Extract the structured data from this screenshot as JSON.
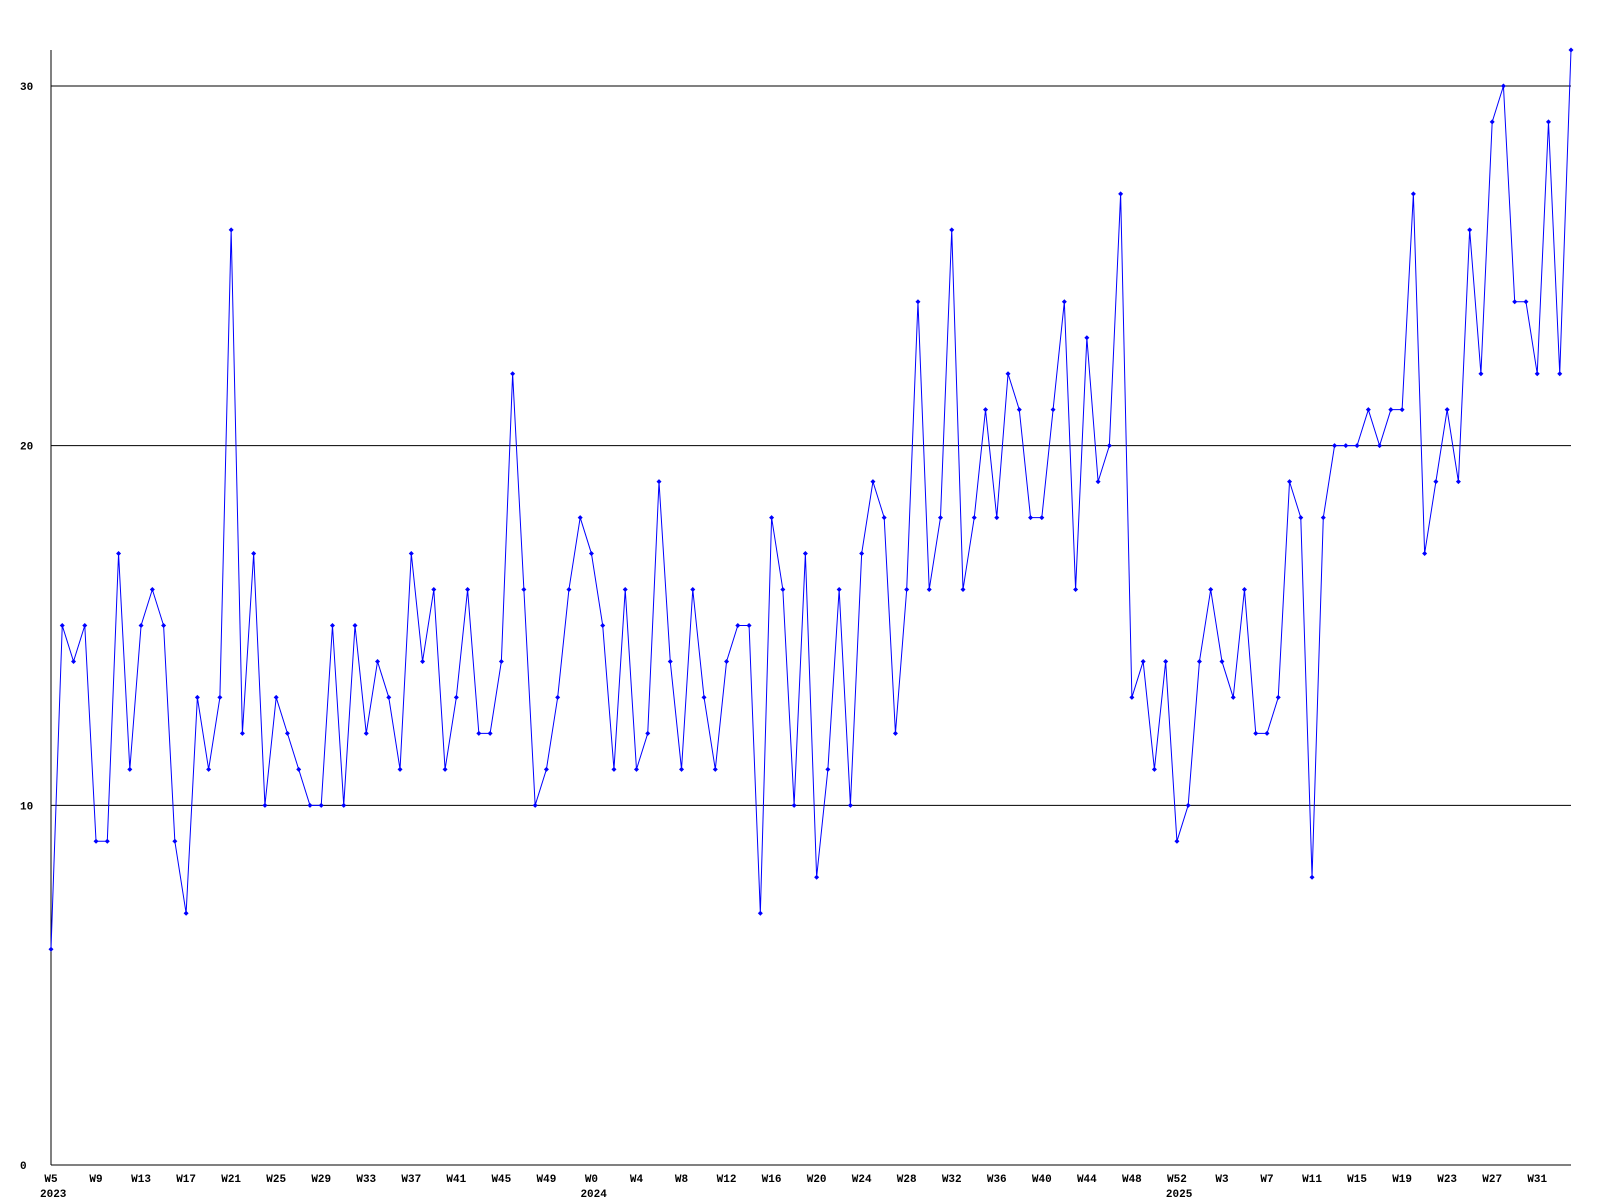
{
  "chart_data": {
    "type": "line",
    "color": "#0000ff",
    "grid": true,
    "ylim": [
      0,
      31
    ],
    "yticks": [
      0,
      10,
      20,
      30
    ],
    "categories": [
      "W5",
      null,
      null,
      null,
      "W9",
      null,
      null,
      null,
      "W13",
      null,
      null,
      null,
      "W17",
      null,
      null,
      null,
      "W21",
      null,
      null,
      null,
      "W25",
      null,
      null,
      null,
      "W29",
      null,
      null,
      null,
      "W33",
      null,
      null,
      null,
      "W37",
      null,
      null,
      null,
      "W41",
      null,
      null,
      null,
      "W45",
      null,
      null,
      null,
      "W49",
      null,
      null,
      null,
      "W0",
      null,
      null,
      null,
      "W4",
      null,
      null,
      null,
      "W8",
      null,
      null,
      null,
      "W12",
      null,
      null,
      null,
      "W16",
      null,
      null,
      null,
      "W20",
      null,
      null,
      null,
      "W24",
      null,
      null,
      null,
      "W28",
      null,
      null,
      null,
      "W32",
      null,
      null,
      null,
      "W36",
      null,
      null,
      null,
      "W40",
      null,
      null,
      null,
      "W44",
      null,
      null,
      null,
      "W48",
      null,
      null,
      null,
      "W52",
      null,
      null,
      null,
      "W3",
      null,
      null,
      null,
      "W7",
      null,
      null,
      null,
      "W11",
      null,
      null,
      null,
      "W15",
      null,
      null,
      null,
      "W19",
      null,
      null,
      null,
      "W23",
      null,
      null,
      null,
      "W27",
      null,
      null,
      null,
      "W31",
      null,
      null,
      null
    ],
    "category_years": [
      "2023",
      null,
      null,
      null,
      null,
      null,
      null,
      null,
      null,
      null,
      null,
      null,
      null,
      null,
      null,
      null,
      null,
      null,
      null,
      null,
      null,
      null,
      null,
      null,
      null,
      null,
      null,
      null,
      null,
      null,
      null,
      null,
      null,
      null,
      null,
      null,
      null,
      null,
      null,
      null,
      null,
      null,
      null,
      null,
      null,
      null,
      null,
      null,
      "2024",
      null,
      null,
      null,
      null,
      null,
      null,
      null,
      null,
      null,
      null,
      null,
      null,
      null,
      null,
      null,
      null,
      null,
      null,
      null,
      null,
      null,
      null,
      null,
      null,
      null,
      null,
      null,
      null,
      null,
      null,
      null,
      null,
      null,
      null,
      null,
      null,
      null,
      null,
      null,
      null,
      null,
      null,
      null,
      null,
      null,
      null,
      null,
      null,
      null,
      null,
      null,
      "2025",
      null,
      null,
      null,
      null,
      null,
      null,
      null,
      null,
      null,
      null,
      null,
      null,
      null,
      null,
      null,
      null,
      null,
      null,
      null,
      null,
      null,
      null,
      null,
      null,
      null,
      null,
      null,
      null,
      null,
      null,
      null,
      null,
      null,
      null,
      null
    ],
    "values": [
      6,
      15,
      14,
      15,
      9,
      9,
      17,
      11,
      15,
      16,
      15,
      9,
      7,
      13,
      11,
      13,
      26,
      12,
      17,
      10,
      13,
      12,
      11,
      10,
      10,
      15,
      10,
      15,
      12,
      14,
      13,
      11,
      17,
      14,
      16,
      11,
      13,
      16,
      12,
      12,
      14,
      22,
      16,
      10,
      11,
      13,
      16,
      18,
      17,
      15,
      11,
      16,
      11,
      12,
      19,
      14,
      11,
      16,
      13,
      11,
      14,
      15,
      15,
      7,
      18,
      16,
      10,
      17,
      8,
      11,
      16,
      10,
      17,
      19,
      18,
      12,
      16,
      24,
      16,
      18,
      26,
      16,
      18,
      21,
      18,
      22,
      21,
      18,
      18,
      21,
      24,
      16,
      23,
      19,
      20,
      27,
      13,
      14,
      11,
      14,
      9,
      10,
      14,
      16,
      14,
      13,
      16,
      12,
      12,
      13,
      19,
      18,
      8,
      18,
      20,
      20,
      20,
      21,
      20,
      21,
      21,
      27,
      17,
      19,
      21,
      19,
      26,
      22,
      29,
      30,
      24,
      24,
      22,
      29,
      22,
      31
    ]
  }
}
